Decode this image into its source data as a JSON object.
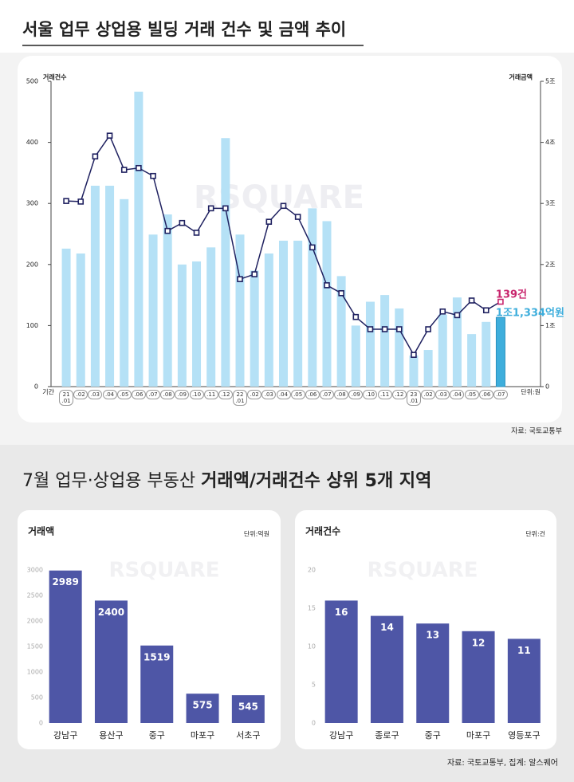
{
  "title": "서울 업무 상업용 빌딩 거래 건수 및 금액 추이",
  "watermark": "RSQUARE",
  "section_title": {
    "regular": "7월 업무·상업용 부동산 ",
    "bold": "거래액/거래건수 상위 5개 지역"
  },
  "source": "자료: 국토교통부, 집계: 알스퀘어",
  "chart_data": [
    {
      "type": "bar_line",
      "ylabel": "거래건수",
      "y2label": "거래금액",
      "xlabel": "기간",
      "unit": "단위:원",
      "source": "자료: 국토교통부",
      "categories": [
        "21\n.01",
        ".02",
        ".03",
        ".04",
        ".05",
        ".06",
        ".07",
        ".08",
        ".09",
        ".10",
        ".11",
        ".12",
        "22\n.01",
        ".02",
        ".03",
        ".04",
        ".05",
        ".06",
        ".07",
        ".08",
        ".09",
        ".10",
        ".11",
        ".12",
        "23\n.01",
        ".02",
        ".03",
        ".04",
        ".05",
        ".06",
        ".07"
      ],
      "ylim": [
        0,
        500
      ],
      "yticks": [
        0,
        100,
        200,
        300,
        400,
        500
      ],
      "y2lim": [
        0,
        5
      ],
      "y2ticks": [
        0,
        {
          "value": 1,
          "label": "1조"
        },
        {
          "value": 2,
          "label": "2조"
        },
        {
          "value": 3,
          "label": "3조"
        },
        {
          "value": 4,
          "label": "4조"
        },
        {
          "value": 5,
          "label": "5조"
        }
      ],
      "series": [
        {
          "type": "bar",
          "axis": "y2",
          "color": "#b5e1f6",
          "highlight_color": "#3eaedc",
          "values": [
            2.26,
            2.18,
            3.29,
            3.29,
            3.07,
            4.83,
            2.49,
            2.82,
            2.0,
            2.05,
            2.28,
            4.07,
            2.49,
            1.9,
            2.18,
            2.39,
            2.39,
            2.92,
            2.71,
            1.81,
            1.0,
            1.39,
            1.5,
            1.28,
            0.51,
            0.6,
            1.18,
            1.46,
            0.86,
            1.06,
            1.1334
          ],
          "value_labels": [
            null,
            null,
            null,
            null,
            null,
            null,
            null,
            null,
            null,
            null,
            null,
            null,
            null,
            null,
            null,
            null,
            null,
            null,
            null,
            null,
            null,
            null,
            null,
            null,
            null,
            null,
            null,
            null,
            null,
            null,
            "1조1,334억원"
          ]
        },
        {
          "type": "line",
          "color": "#1f2160",
          "highlight_color": "#c8246c",
          "values": [
            304,
            303,
            377,
            411,
            355,
            358,
            345,
            255,
            268,
            252,
            292,
            292,
            176,
            184,
            270,
            296,
            278,
            228,
            166,
            153,
            114,
            94,
            94,
            94,
            52,
            94,
            123,
            117,
            141,
            125,
            139
          ],
          "value_labels": [
            null,
            null,
            null,
            null,
            null,
            null,
            null,
            null,
            null,
            null,
            null,
            null,
            null,
            null,
            null,
            null,
            null,
            null,
            null,
            null,
            null,
            null,
            null,
            null,
            null,
            null,
            null,
            null,
            null,
            null,
            "139건"
          ]
        }
      ]
    },
    {
      "type": "bar",
      "title": "거래액",
      "unit": "단위:억원",
      "color": "#4e56a6",
      "categories": [
        "강남구",
        "용산구",
        "중구",
        "마포구",
        "서초구"
      ],
      "values": [
        2989,
        2400,
        1519,
        575,
        545
      ],
      "ylim": [
        0,
        3000
      ],
      "yticks": [
        0,
        500,
        1000,
        1500,
        2000,
        2500,
        3000
      ]
    },
    {
      "type": "bar",
      "title": "거래건수",
      "unit": "단위:건",
      "color": "#4e56a6",
      "categories": [
        "강남구",
        "종로구",
        "중구",
        "마포구",
        "영등포구"
      ],
      "values": [
        16,
        14,
        13,
        12,
        11
      ],
      "ylim": [
        0,
        20
      ],
      "yticks": [
        0,
        5,
        10,
        15,
        20
      ]
    }
  ]
}
